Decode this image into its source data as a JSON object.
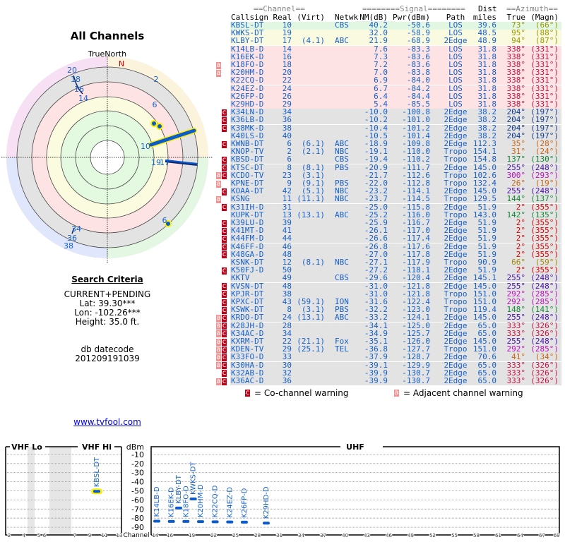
{
  "polar": {
    "title": "All Channels",
    "north_label": "TrueNorth",
    "n_marker": "N",
    "labels": [
      "20",
      "18",
      "16",
      "14",
      "2",
      "6",
      "10",
      "19",
      "17",
      "6",
      "34",
      "36",
      "38"
    ]
  },
  "criteria": {
    "heading": "Search Criteria",
    "mode": "CURRENT+PENDING",
    "lat": "Lat: 39.30***",
    "lon": "Lon: -102.26***",
    "height": "Height: 35.0 ft.",
    "datecode_label": "db datecode",
    "datecode": "201209191039"
  },
  "link": "www.tvfool.com",
  "table": {
    "group_channel": "==Channel==",
    "group_signal": "========Signal========",
    "group_dist": "Dist",
    "group_azimuth": "==Azimuth==",
    "headers": [
      "Callsign",
      "Real",
      "(Virt)",
      "Netwk",
      "NM(dB)",
      "Pwr(dBm)",
      "Path",
      "miles",
      "True",
      "(Magn)"
    ],
    "colors": {
      "green": "#e2f7e2",
      "yellow": "#fafae0",
      "pink": "#fde3e3",
      "gray": "#e3e3e3"
    },
    "az_colors": {
      "olive": "#9a9a00",
      "crimson": "#cc1144",
      "navy": "#123c8c",
      "orange": "#cc6611",
      "green": "#118833",
      "purple": "#4a10b0",
      "magenta": "#bb11bb",
      "red": "#dd0000",
      "gold": "#aa8800"
    },
    "rows": [
      {
        "cs": "KBSL-DT",
        "real": "10",
        "virt": "",
        "net": "CBS",
        "nm": "40.2",
        "pwr": "-50.6",
        "path": "LOS",
        "dist": "39.6",
        "tru": "73°",
        "mag": "(66°)",
        "bg": "green",
        "az": "olive",
        "warn": ""
      },
      {
        "cs": "KWKS-DT",
        "real": "19",
        "virt": "",
        "net": "",
        "nm": "32.0",
        "pwr": "-58.9",
        "path": "LOS",
        "dist": "48.5",
        "tru": "95°",
        "mag": "(88°)",
        "bg": "yellow",
        "az": "olive",
        "warn": ""
      },
      {
        "cs": "KLBY-DT",
        "real": "17",
        "virt": "(4.1)",
        "net": "ABC",
        "nm": "21.9",
        "pwr": "-68.9",
        "path": "2Edge",
        "dist": "48.9",
        "tru": "94°",
        "mag": "(87°)",
        "bg": "yellow",
        "az": "olive",
        "warn": ""
      },
      {
        "cs": "K14LB-D",
        "real": "14",
        "virt": "",
        "net": "",
        "nm": "7.6",
        "pwr": "-83.3",
        "path": "LOS",
        "dist": "31.8",
        "tru": "338°",
        "mag": "(331°)",
        "bg": "pink",
        "az": "crimson",
        "warn": ""
      },
      {
        "cs": "K16EK-D",
        "real": "16",
        "virt": "",
        "net": "",
        "nm": "7.3",
        "pwr": "-83.6",
        "path": "LOS",
        "dist": "31.8",
        "tru": "338°",
        "mag": "(331°)",
        "bg": "pink",
        "az": "crimson",
        "warn": ""
      },
      {
        "cs": "K18FO-D",
        "real": "18",
        "virt": "",
        "net": "",
        "nm": "7.2",
        "pwr": "-83.6",
        "path": "LOS",
        "dist": "31.8",
        "tru": "338°",
        "mag": "(331°)",
        "bg": "pink",
        "az": "crimson",
        "warn": "a"
      },
      {
        "cs": "K20HM-D",
        "real": "20",
        "virt": "",
        "net": "",
        "nm": "7.0",
        "pwr": "-83.8",
        "path": "LOS",
        "dist": "31.8",
        "tru": "338°",
        "mag": "(331°)",
        "bg": "pink",
        "az": "crimson",
        "warn": "a"
      },
      {
        "cs": "K22CQ-D",
        "real": "22",
        "virt": "",
        "net": "",
        "nm": "6.9",
        "pwr": "-84.0",
        "path": "LOS",
        "dist": "31.8",
        "tru": "338°",
        "mag": "(331°)",
        "bg": "pink",
        "az": "crimson",
        "warn": ""
      },
      {
        "cs": "K24EZ-D",
        "real": "24",
        "virt": "",
        "net": "",
        "nm": "6.7",
        "pwr": "-84.2",
        "path": "LOS",
        "dist": "31.8",
        "tru": "338°",
        "mag": "(331°)",
        "bg": "pink",
        "az": "crimson",
        "warn": ""
      },
      {
        "cs": "K26FP-D",
        "real": "26",
        "virt": "",
        "net": "",
        "nm": "6.4",
        "pwr": "-84.4",
        "path": "LOS",
        "dist": "31.8",
        "tru": "338°",
        "mag": "(331°)",
        "bg": "pink",
        "az": "crimson",
        "warn": ""
      },
      {
        "cs": "K29HD-D",
        "real": "29",
        "virt": "",
        "net": "",
        "nm": "5.4",
        "pwr": "-85.5",
        "path": "LOS",
        "dist": "31.8",
        "tru": "338°",
        "mag": "(331°)",
        "bg": "pink",
        "az": "crimson",
        "warn": ""
      },
      {
        "cs": "K34LN-D",
        "real": "34",
        "virt": "",
        "net": "",
        "nm": "-10.0",
        "pwr": "-100.8",
        "path": "2Edge",
        "dist": "38.2",
        "tru": "204°",
        "mag": "(197°)",
        "bg": "gray",
        "az": "navy",
        "warn": "c"
      },
      {
        "cs": "K36LB-D",
        "real": "36",
        "virt": "",
        "net": "",
        "nm": "-10.2",
        "pwr": "-101.0",
        "path": "2Edge",
        "dist": "38.2",
        "tru": "204°",
        "mag": "(197°)",
        "bg": "gray",
        "az": "navy",
        "warn": "c"
      },
      {
        "cs": "K38MK-D",
        "real": "38",
        "virt": "",
        "net": "",
        "nm": "-10.4",
        "pwr": "-101.2",
        "path": "2Edge",
        "dist": "38.2",
        "tru": "204°",
        "mag": "(197°)",
        "bg": "gray",
        "az": "navy",
        "warn": "c"
      },
      {
        "cs": "K40LS-D",
        "real": "40",
        "virt": "",
        "net": "",
        "nm": "-10.5",
        "pwr": "-101.4",
        "path": "2Edge",
        "dist": "38.2",
        "tru": "204°",
        "mag": "(197°)",
        "bg": "gray",
        "az": "navy",
        "warn": ""
      },
      {
        "cs": "KWNB-DT",
        "real": "6",
        "virt": "(6.1)",
        "net": "ABC",
        "nm": "-18.9",
        "pwr": "-109.8",
        "path": "2Edge",
        "dist": "112.3",
        "tru": "35°",
        "mag": "(28°)",
        "bg": "gray",
        "az": "orange",
        "warn": "c"
      },
      {
        "cs": "KNOP-TV",
        "real": "2",
        "virt": "(2.1)",
        "net": "NBC",
        "nm": "-19.1",
        "pwr": "-110.0",
        "path": "Tropo",
        "dist": "154.1",
        "tru": "31°",
        "mag": "(24°)",
        "bg": "gray",
        "az": "orange",
        "warn": ""
      },
      {
        "cs": "KBSD-DT",
        "real": "6",
        "virt": "",
        "net": "CBS",
        "nm": "-19.4",
        "pwr": "-110.2",
        "path": "Tropo",
        "dist": "154.8",
        "tru": "137°",
        "mag": "(130°)",
        "bg": "gray",
        "az": "green",
        "warn": "c"
      },
      {
        "cs": "KTSC-DT",
        "real": "8",
        "virt": "(8.1)",
        "net": "PBS",
        "nm": "-20.9",
        "pwr": "-111.7",
        "path": "2Edge",
        "dist": "145.0",
        "tru": "255°",
        "mag": "(248°)",
        "bg": "gray",
        "az": "purple",
        "warn": "c"
      },
      {
        "cs": "KCDO-TV",
        "real": "23",
        "virt": "(3.1)",
        "net": "",
        "nm": "-21.7",
        "pwr": "-112.6",
        "path": "Tropo",
        "dist": "102.6",
        "tru": "300°",
        "mag": "(293°)",
        "bg": "gray",
        "az": "magenta",
        "warn": "ac"
      },
      {
        "cs": "KPNE-DT",
        "real": "9",
        "virt": "(9.1)",
        "net": "PBS",
        "nm": "-22.0",
        "pwr": "-112.8",
        "path": "Tropo",
        "dist": "132.4",
        "tru": "26°",
        "mag": "(19°)",
        "bg": "gray",
        "az": "orange",
        "warn": "a"
      },
      {
        "cs": "KOAA-DT",
        "real": "42",
        "virt": "(5.1)",
        "net": "NBC",
        "nm": "-23.2",
        "pwr": "-114.1",
        "path": "2Edge",
        "dist": "145.0",
        "tru": "255°",
        "mag": "(248°)",
        "bg": "gray",
        "az": "purple",
        "warn": "c"
      },
      {
        "cs": "KSNG",
        "real": "11",
        "virt": "(11.1)",
        "net": "NBC",
        "nm": "-23.7",
        "pwr": "-114.5",
        "path": "Tropo",
        "dist": "129.5",
        "tru": "144°",
        "mag": "(137°)",
        "bg": "gray",
        "az": "green",
        "warn": "a"
      },
      {
        "cs": "K31IH-D",
        "real": "31",
        "virt": "",
        "net": "",
        "nm": "-25.0",
        "pwr": "-115.8",
        "path": "2Edge",
        "dist": "51.9",
        "tru": "2°",
        "mag": "(355°)",
        "bg": "gray",
        "az": "red",
        "warn": "c"
      },
      {
        "cs": "KUPK-DT",
        "real": "13",
        "virt": "(13.1)",
        "net": "ABC",
        "nm": "-25.2",
        "pwr": "-116.0",
        "path": "Tropo",
        "dist": "143.0",
        "tru": "142°",
        "mag": "(135°)",
        "bg": "gray",
        "az": "green",
        "warn": ""
      },
      {
        "cs": "K39LU-D",
        "real": "39",
        "virt": "",
        "net": "",
        "nm": "-25.9",
        "pwr": "-116.7",
        "path": "2Edge",
        "dist": "51.9",
        "tru": "2°",
        "mag": "(355°)",
        "bg": "gray",
        "az": "red",
        "warn": "c"
      },
      {
        "cs": "K41MT-D",
        "real": "41",
        "virt": "",
        "net": "",
        "nm": "-26.1",
        "pwr": "-117.0",
        "path": "2Edge",
        "dist": "51.9",
        "tru": "2°",
        "mag": "(355°)",
        "bg": "gray",
        "az": "red",
        "warn": "c"
      },
      {
        "cs": "K44FM-D",
        "real": "44",
        "virt": "",
        "net": "",
        "nm": "-26.6",
        "pwr": "-117.4",
        "path": "2Edge",
        "dist": "51.9",
        "tru": "2°",
        "mag": "(355°)",
        "bg": "gray",
        "az": "red",
        "warn": "c"
      },
      {
        "cs": "K46FF-D",
        "real": "46",
        "virt": "",
        "net": "",
        "nm": "-26.8",
        "pwr": "-117.6",
        "path": "2Edge",
        "dist": "51.9",
        "tru": "2°",
        "mag": "(355°)",
        "bg": "gray",
        "az": "red",
        "warn": "c"
      },
      {
        "cs": "K48GA-D",
        "real": "48",
        "virt": "",
        "net": "",
        "nm": "-27.0",
        "pwr": "-117.8",
        "path": "2Edge",
        "dist": "51.9",
        "tru": "2°",
        "mag": "(355°)",
        "bg": "gray",
        "az": "red",
        "warn": "c"
      },
      {
        "cs": "KSNK-DT",
        "real": "12",
        "virt": "(8.1)",
        "net": "NBC",
        "nm": "-27.1",
        "pwr": "-117.9",
        "path": "Tropo",
        "dist": "90.9",
        "tru": "66°",
        "mag": "(59°)",
        "bg": "gray",
        "az": "gold",
        "warn": ""
      },
      {
        "cs": "K50FJ-D",
        "real": "50",
        "virt": "",
        "net": "",
        "nm": "-27.2",
        "pwr": "-118.1",
        "path": "2Edge",
        "dist": "51.9",
        "tru": "2°",
        "mag": "(355°)",
        "bg": "gray",
        "az": "red",
        "warn": "c"
      },
      {
        "cs": "KKTV",
        "real": "49",
        "virt": "",
        "net": "CBS",
        "nm": "-29.6",
        "pwr": "-120.4",
        "path": "2Edge",
        "dist": "145.1",
        "tru": "255°",
        "mag": "(248°)",
        "bg": "gray",
        "az": "purple",
        "warn": ""
      },
      {
        "cs": "KVSN-DT",
        "real": "48",
        "virt": "",
        "net": "",
        "nm": "-31.0",
        "pwr": "-121.8",
        "path": "2Edge",
        "dist": "145.0",
        "tru": "255°",
        "mag": "(248°)",
        "bg": "gray",
        "az": "purple",
        "warn": "c"
      },
      {
        "cs": "KPJR-DT",
        "real": "38",
        "virt": "",
        "net": "",
        "nm": "-31.0",
        "pwr": "-121.8",
        "path": "Tropo",
        "dist": "151.0",
        "tru": "292°",
        "mag": "(285°)",
        "bg": "gray",
        "az": "magenta",
        "warn": "c"
      },
      {
        "cs": "KPXC-DT",
        "real": "43",
        "virt": "(59.1)",
        "net": "ION",
        "nm": "-31.6",
        "pwr": "-122.4",
        "path": "Tropo",
        "dist": "151.0",
        "tru": "292°",
        "mag": "(285°)",
        "bg": "gray",
        "az": "magenta",
        "warn": "c"
      },
      {
        "cs": "KSWK-DT",
        "real": "8",
        "virt": "(3.1)",
        "net": "PBS",
        "nm": "-32.2",
        "pwr": "-123.0",
        "path": "Tropo",
        "dist": "119.4",
        "tru": "148°",
        "mag": "(141°)",
        "bg": "gray",
        "az": "green",
        "warn": "c"
      },
      {
        "cs": "KRDO-DT",
        "real": "24",
        "virt": "(13.1)",
        "net": "ABC",
        "nm": "-33.2",
        "pwr": "-124.1",
        "path": "2Edge",
        "dist": "145.0",
        "tru": "255°",
        "mag": "(248°)",
        "bg": "gray",
        "az": "purple",
        "warn": "ac"
      },
      {
        "cs": "K28JH-D",
        "real": "28",
        "virt": "",
        "net": "",
        "nm": "-34.1",
        "pwr": "-125.0",
        "path": "2Edge",
        "dist": "65.0",
        "tru": "333°",
        "mag": "(326°)",
        "bg": "gray",
        "az": "crimson",
        "warn": "ac"
      },
      {
        "cs": "K34AC-D",
        "real": "34",
        "virt": "",
        "net": "",
        "nm": "-34.9",
        "pwr": "-125.7",
        "path": "2Edge",
        "dist": "65.0",
        "tru": "333°",
        "mag": "(326°)",
        "bg": "gray",
        "az": "crimson",
        "warn": "ac"
      },
      {
        "cs": "KXRM-DT",
        "real": "22",
        "virt": "(21.1)",
        "net": "Fox",
        "nm": "-35.1",
        "pwr": "-126.0",
        "path": "2Edge",
        "dist": "145.0",
        "tru": "255°",
        "mag": "(248°)",
        "bg": "gray",
        "az": "purple",
        "warn": "ac"
      },
      {
        "cs": "KDEN-TV",
        "real": "29",
        "virt": "(25.1)",
        "net": "TEL",
        "nm": "-36.8",
        "pwr": "-127.7",
        "path": "Tropo",
        "dist": "151.0",
        "tru": "292°",
        "mag": "(285°)",
        "bg": "gray",
        "az": "magenta",
        "warn": "ac"
      },
      {
        "cs": "K33FO-D",
        "real": "33",
        "virt": "",
        "net": "",
        "nm": "-37.9",
        "pwr": "-128.7",
        "path": "2Edge",
        "dist": "70.6",
        "tru": "41°",
        "mag": "(34°)",
        "bg": "gray",
        "az": "orange",
        "warn": "ac"
      },
      {
        "cs": "K30HA-D",
        "real": "30",
        "virt": "",
        "net": "",
        "nm": "-39.1",
        "pwr": "-129.9",
        "path": "2Edge",
        "dist": "65.0",
        "tru": "333°",
        "mag": "(326°)",
        "bg": "gray",
        "az": "crimson",
        "warn": "ac"
      },
      {
        "cs": "K32AB-D",
        "real": "32",
        "virt": "",
        "net": "",
        "nm": "-39.9",
        "pwr": "-130.7",
        "path": "2Edge",
        "dist": "65.0",
        "tru": "333°",
        "mag": "(326°)",
        "bg": "gray",
        "az": "crimson",
        "warn": "c"
      },
      {
        "cs": "K36AC-D",
        "real": "36",
        "virt": "",
        "net": "",
        "nm": "-39.9",
        "pwr": "-130.7",
        "path": "2Edge",
        "dist": "65.0",
        "tru": "333°",
        "mag": "(326°)",
        "bg": "gray",
        "az": "crimson",
        "warn": "ac"
      }
    ]
  },
  "legend": {
    "co_badge": "c",
    "co_label": "= Co-channel warning",
    "adj_badge": "a",
    "adj_label": "= Adjacent channel warning"
  },
  "chart_data": {
    "type": "scatter",
    "panels": [
      "VHF Lo",
      "VHF Hi",
      "UHF"
    ],
    "ylabel": "dBm",
    "xlabel": "Channel",
    "ylim": [
      -95,
      0
    ],
    "yticks": [
      "-10",
      "-20",
      "-30",
      "-40",
      "-50",
      "-60",
      "-70",
      "-80",
      "-90"
    ],
    "vhf_ticks": [
      "2",
      "4",
      "5",
      "6",
      "7",
      "9",
      "11",
      "13"
    ],
    "uhf_ticks": [
      "14",
      "16",
      "19",
      "22",
      "25",
      "28",
      "31",
      "34",
      "37",
      "40",
      "43",
      "46",
      "49",
      "52",
      "55",
      "58",
      "61",
      "64",
      "67",
      "69"
    ],
    "points": [
      {
        "name": "KBSL-DT",
        "channel": 10,
        "dbm": -50.6,
        "highlight": true
      },
      {
        "name": "K14LB-D",
        "channel": 14,
        "dbm": -83.3
      },
      {
        "name": "K16EK-D",
        "channel": 16,
        "dbm": -83.6
      },
      {
        "name": "KLBY-DT",
        "channel": 17,
        "dbm": -68.9
      },
      {
        "name": "K18FO-D",
        "channel": 18,
        "dbm": -83.6
      },
      {
        "name": "KWKS-DT",
        "channel": 19,
        "dbm": -58.9
      },
      {
        "name": "K20HM-D",
        "channel": 20,
        "dbm": -83.8
      },
      {
        "name": "K22CQ-D",
        "channel": 22,
        "dbm": -84.0
      },
      {
        "name": "K24EZ-D",
        "channel": 24,
        "dbm": -84.2
      },
      {
        "name": "K26FP-D",
        "channel": 26,
        "dbm": -84.4
      },
      {
        "name": "K29HD-D",
        "channel": 29,
        "dbm": -85.5
      }
    ]
  }
}
